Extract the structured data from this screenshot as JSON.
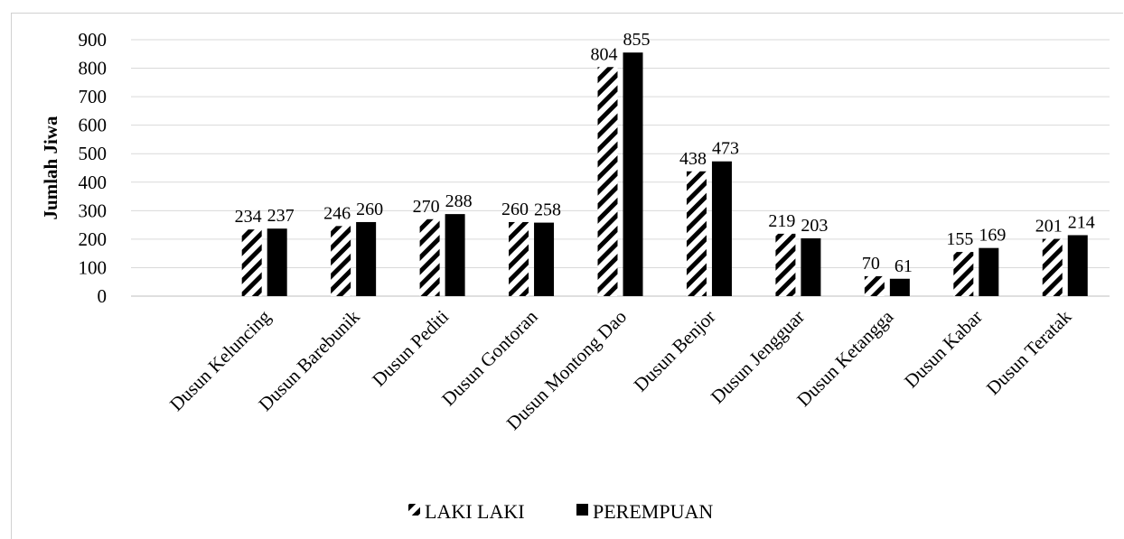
{
  "chart_data": {
    "type": "bar",
    "title": "",
    "xlabel": "",
    "ylabel": "Jumlah Jiwa",
    "ylim": [
      0,
      900
    ],
    "yticks": [
      0,
      100,
      200,
      300,
      400,
      500,
      600,
      700,
      800,
      900
    ],
    "grid": true,
    "legend_position": "bottom",
    "categories": [
      "Dusun Keluncing",
      "Dusun Barebunik",
      "Dusun Pediti",
      "Dusun Gontoran",
      "Dusun Montong Dao",
      "Dusun Benjor",
      "Dusun Jengguar",
      "Dusun Ketangga",
      "Dusun Kabar",
      "Dusun Teratak"
    ],
    "series": [
      {
        "name": "LAKI LAKI",
        "values": [
          234,
          246,
          270,
          260,
          804,
          438,
          219,
          70,
          155,
          201
        ],
        "pattern": "diagonal-hatch",
        "color": "#000000"
      },
      {
        "name": "PEREMPUAN",
        "values": [
          237,
          260,
          288,
          258,
          855,
          473,
          203,
          61,
          169,
          214
        ],
        "pattern": "solid",
        "color": "#000000"
      }
    ]
  }
}
